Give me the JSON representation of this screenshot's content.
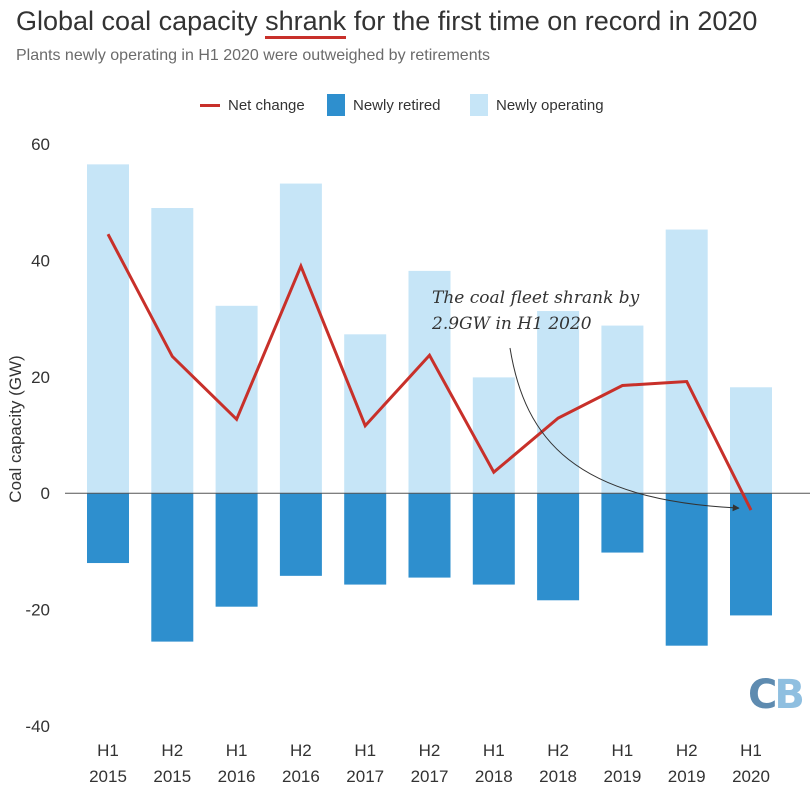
{
  "title": {
    "before": "Global coal capacity ",
    "highlight": "shrank",
    "after": " for the first time on record in 2020"
  },
  "subtitle": "Plants newly operating in H1 2020 were outweighed by retirements",
  "legend": {
    "net_change": "Net change",
    "newly_retired": "Newly retired",
    "newly_operating": "Newly operating"
  },
  "annotation": "The coal fleet shrank by\n2.9GW in H1 2020",
  "logo": {
    "c": "C",
    "b": "B"
  },
  "colors": {
    "net_change": "#c8302a",
    "newly_retired": "#2e8fce",
    "newly_operating": "#c6e5f7",
    "title_underline": "#c8302a"
  },
  "chart_data": {
    "type": "bar",
    "categories": [
      [
        "H1",
        "2015"
      ],
      [
        "H2",
        "2015"
      ],
      [
        "H1",
        "2016"
      ],
      [
        "H2",
        "2016"
      ],
      [
        "H1",
        "2017"
      ],
      [
        "H2",
        "2017"
      ],
      [
        "H1",
        "2018"
      ],
      [
        "H2",
        "2018"
      ],
      [
        "H1",
        "2019"
      ],
      [
        "H2",
        "2019"
      ],
      [
        "H1",
        "2020"
      ]
    ],
    "series": [
      {
        "name": "Newly operating",
        "kind": "bar",
        "values": [
          56.5,
          49,
          32.2,
          53.2,
          27.3,
          38.2,
          19.9,
          31.3,
          28.8,
          45.3,
          18.2
        ]
      },
      {
        "name": "Newly retired",
        "kind": "bar",
        "values": [
          -12,
          -25.5,
          -19.5,
          -14.2,
          -15.7,
          -14.5,
          -15.7,
          -18.4,
          -10.2,
          -26.2,
          -21
        ]
      },
      {
        "name": "Net change",
        "kind": "line",
        "values": [
          44.5,
          23.5,
          12.7,
          39,
          11.6,
          23.7,
          3.6,
          12.9,
          18.5,
          19.2,
          -2.9
        ]
      }
    ],
    "ylabel": "Coal capacity (GW)",
    "xlabel": "",
    "ylim": [
      -40,
      60
    ],
    "yticks": [
      60,
      40,
      20,
      0,
      -20,
      -40
    ],
    "stacking": "overlay",
    "grid": false,
    "legend_position": "top-center"
  }
}
